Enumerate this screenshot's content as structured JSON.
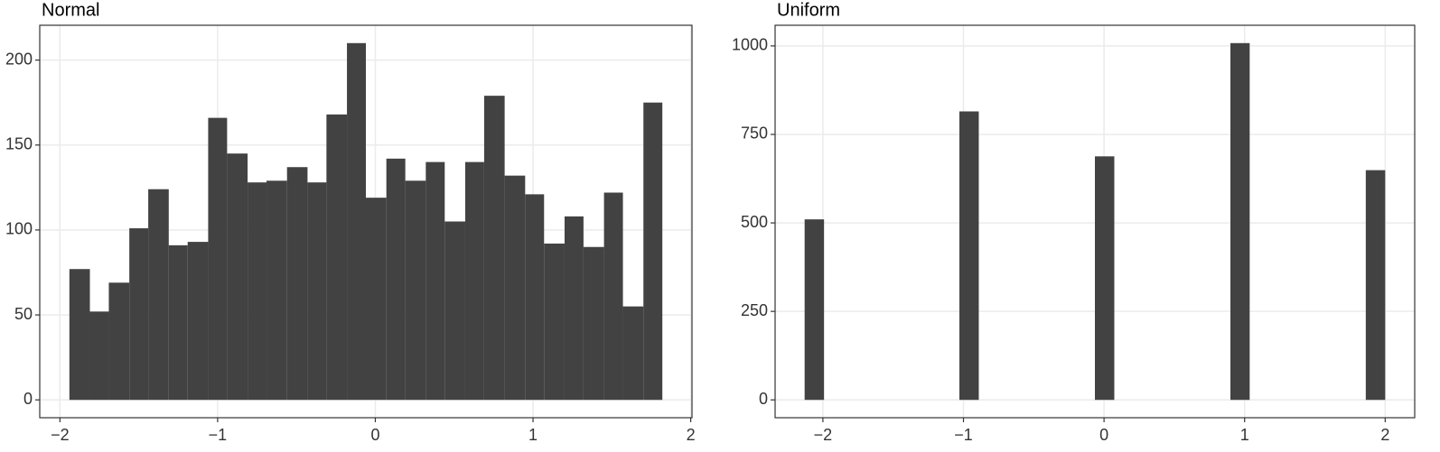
{
  "chart_data": [
    {
      "type": "histogram",
      "title": "Normal",
      "color": "#424242",
      "grid": true,
      "bins": [
        -1.94,
        -1.81,
        -1.69,
        -1.56,
        -1.44,
        -1.31,
        -1.19,
        -1.06,
        -0.94,
        -0.81,
        -0.69,
        -0.56,
        -0.43,
        -0.31,
        -0.18,
        -0.06,
        0.07,
        0.19,
        0.32,
        0.44,
        0.57,
        0.69,
        0.82,
        0.95,
        1.07,
        1.2,
        1.32,
        1.45,
        1.57,
        1.7,
        1.82
      ],
      "values": [
        77,
        52,
        69,
        101,
        124,
        91,
        93,
        166,
        145,
        128,
        129,
        137,
        128,
        168,
        210,
        119,
        142,
        129,
        140,
        105,
        140,
        179,
        132,
        121,
        92,
        108,
        90,
        122,
        55,
        175
      ],
      "xlim": [
        -2.128,
        2.008
      ],
      "ylim": [
        -10.5,
        220.5
      ],
      "xticks": [
        {
          "value": -2,
          "label": "−2"
        },
        {
          "value": -1,
          "label": "−1"
        },
        0,
        1,
        2
      ],
      "yticks": [
        0,
        50,
        100,
        150,
        200
      ]
    },
    {
      "type": "histogram",
      "title": "Uniform",
      "color": "#424242",
      "grid": true,
      "bins": [
        -2.13,
        -1.992,
        -1.855,
        -1.717,
        -1.579,
        -1.442,
        -1.304,
        -1.166,
        -1.029,
        -0.891,
        -0.753,
        -0.616,
        -0.478,
        -0.34,
        -0.203,
        -0.065,
        0.073,
        0.21,
        0.348,
        0.486,
        0.623,
        0.761,
        0.899,
        1.036,
        1.174,
        1.312,
        1.449,
        1.587,
        1.725,
        1.862,
        2.0
      ],
      "values": [
        510,
        0,
        0,
        0,
        0,
        0,
        0,
        0,
        815,
        0,
        0,
        0,
        0,
        0,
        0,
        688,
        0,
        0,
        0,
        0,
        0,
        0,
        1008,
        0,
        0,
        0,
        0,
        0,
        0,
        649
      ],
      "xlim": [
        -2.34,
        2.21
      ],
      "ylim": [
        -50.4,
        1058.4
      ],
      "xticks": [
        {
          "value": -2,
          "label": "−2"
        },
        {
          "value": -1,
          "label": "−1"
        },
        0,
        1,
        2
      ],
      "yticks": [
        0,
        250,
        500,
        750,
        1000
      ]
    }
  ]
}
